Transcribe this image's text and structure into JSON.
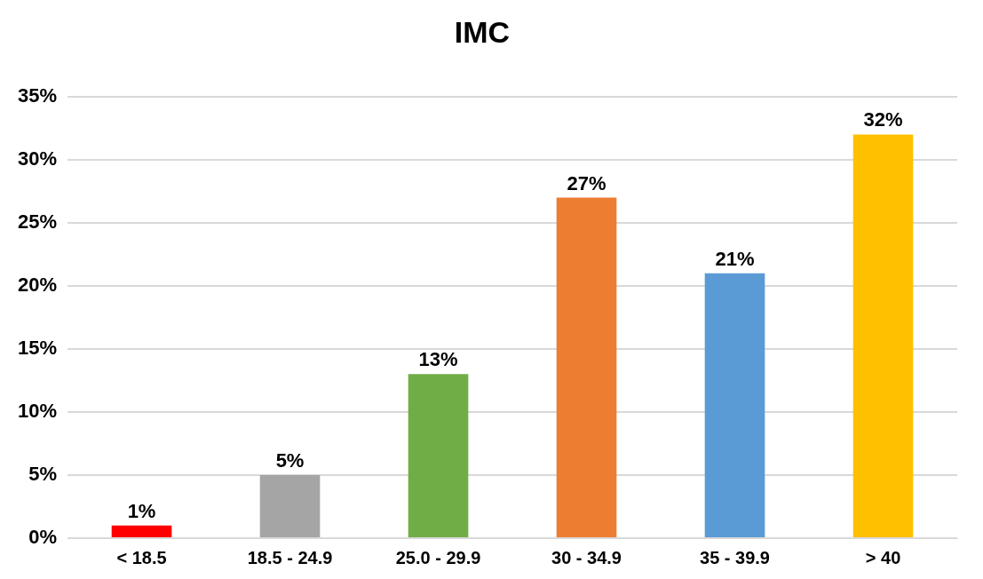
{
  "chart_data": {
    "type": "bar",
    "title": "IMC",
    "categories": [
      "< 18.5",
      "18.5 - 24.9",
      "25.0 - 29.9",
      "30 - 34.9",
      "35 - 39.9",
      "> 40"
    ],
    "values": [
      1,
      5,
      13,
      27,
      21,
      32
    ],
    "colors": [
      "#ff0000",
      "#a5a5a5",
      "#70ad47",
      "#ed7d31",
      "#5b9bd5",
      "#ffc000"
    ],
    "value_labels": [
      "1%",
      "5%",
      "13%",
      "27%",
      "21%",
      "32%"
    ],
    "ylim": [
      0,
      35
    ],
    "yticks": [
      {
        "value": 0,
        "label": "0%"
      },
      {
        "value": 5,
        "label": "5%"
      },
      {
        "value": 10,
        "label": "10%"
      },
      {
        "value": 15,
        "label": "15%"
      },
      {
        "value": 20,
        "label": "20%"
      },
      {
        "value": 25,
        "label": "25%"
      },
      {
        "value": 30,
        "label": "30%"
      },
      {
        "value": 35,
        "label": "35%"
      }
    ],
    "grid": "y",
    "legend": false
  }
}
